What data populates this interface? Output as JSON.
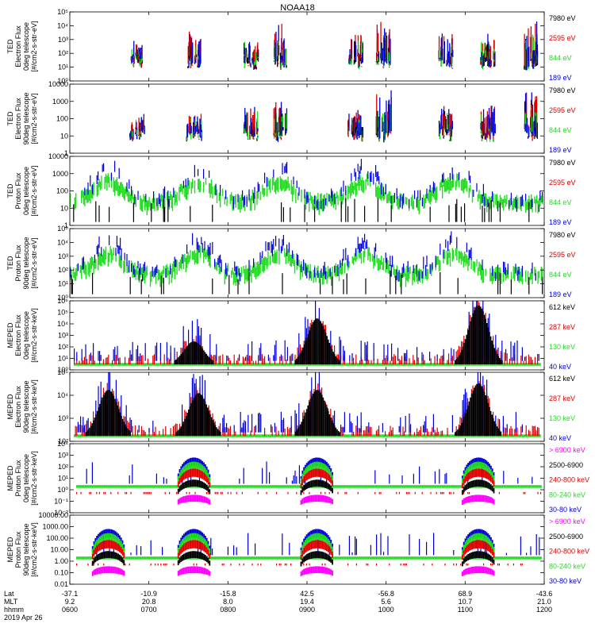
{
  "title": "NOAA18",
  "colors": {
    "black": "#000000",
    "red": "#e00000",
    "green": "#22dd22",
    "blue": "#0000dd",
    "magenta": "#ff00ff"
  },
  "chart_data": [
    {
      "type": "scatter",
      "panel": 1,
      "ylabel": [
        "TED",
        "Electron Flux",
        "0deg telescope",
        "[#/cm2-s-str-eV]"
      ],
      "scale": "log",
      "yticks": [
        "10⁰",
        "10¹",
        "10²",
        "10³",
        "10⁴",
        "10⁵"
      ],
      "ylim": [
        1,
        100000
      ],
      "legend": [
        {
          "text": "7980 eV",
          "color": "black"
        },
        {
          "text": "2595 eV",
          "color": "red"
        },
        {
          "text": "844 eV",
          "color": "green"
        },
        {
          "text": "189 eV",
          "color": "blue"
        }
      ],
      "events": [
        {
          "x": 0.14,
          "amp": 0.35
        },
        {
          "x": 0.26,
          "amp": 0.55
        },
        {
          "x": 0.38,
          "amp": 0.45
        },
        {
          "x": 0.44,
          "amp": 0.7
        },
        {
          "x": 0.6,
          "amp": 0.55
        },
        {
          "x": 0.66,
          "amp": 0.9
        },
        {
          "x": 0.79,
          "amp": 0.6
        },
        {
          "x": 0.88,
          "amp": 0.6
        },
        {
          "x": 0.97,
          "amp": 0.95
        }
      ]
    },
    {
      "type": "scatter",
      "panel": 2,
      "ylabel": [
        "TED",
        "Electron Flux",
        "90deg telescope",
        "[#/cm2-s-str-eV]"
      ],
      "scale": "linear-decades",
      "yticks": [
        "1",
        "10",
        "100",
        "1000",
        "10000"
      ],
      "ylim": [
        1,
        10000
      ],
      "legend": [
        {
          "text": "7980 eV",
          "color": "black"
        },
        {
          "text": "2595 eV",
          "color": "red"
        },
        {
          "text": "844 eV",
          "color": "green"
        },
        {
          "text": "189 eV",
          "color": "blue"
        }
      ],
      "events": [
        {
          "x": 0.14,
          "amp": 0.4
        },
        {
          "x": 0.26,
          "amp": 0.5
        },
        {
          "x": 0.38,
          "amp": 0.55
        },
        {
          "x": 0.44,
          "amp": 0.7
        },
        {
          "x": 0.6,
          "amp": 0.5
        },
        {
          "x": 0.66,
          "amp": 0.9
        },
        {
          "x": 0.79,
          "amp": 0.5
        },
        {
          "x": 0.88,
          "amp": 0.6
        },
        {
          "x": 0.97,
          "amp": 0.9
        }
      ]
    },
    {
      "type": "scatter",
      "panel": 3,
      "ylabel": [
        "TED",
        "Proton Flux",
        "0deg telescope",
        "[#/cm2-s-str-eV]"
      ],
      "scale": "linear-decades",
      "yticks": [
        "1",
        "10",
        "100",
        "1000",
        "10000"
      ],
      "ylim": [
        1,
        10000
      ],
      "legend": [
        {
          "text": "7980 eV",
          "color": "black"
        },
        {
          "text": "2595 eV",
          "color": "red"
        },
        {
          "text": "844 eV",
          "color": "green"
        },
        {
          "text": "189 eV",
          "color": "blue"
        }
      ],
      "humps": [
        0.08,
        0.27,
        0.44,
        0.62,
        0.81
      ]
    },
    {
      "type": "scatter",
      "panel": 4,
      "ylabel": [
        "TED",
        "Proton Flux",
        "90deg telescope",
        "[#/cm2-s-str-eV]"
      ],
      "scale": "log",
      "yticks": [
        "10⁰",
        "10¹",
        "10²",
        "10³",
        "10⁴",
        "10⁵"
      ],
      "ylim": [
        1,
        100000
      ],
      "legend": [
        {
          "text": "7980 eV",
          "color": "black"
        },
        {
          "text": "2595 eV",
          "color": "red"
        },
        {
          "text": "844 eV",
          "color": "green"
        },
        {
          "text": "189 eV",
          "color": "blue"
        }
      ],
      "humps": [
        0.08,
        0.27,
        0.44,
        0.62,
        0.81
      ]
    },
    {
      "type": "scatter",
      "panel": 5,
      "ylabel": [
        "MEPED",
        "Electron Flux",
        "0deg telescope",
        "[#/cm2-s-str-keV]"
      ],
      "scale": "log",
      "yticks": [
        "10⁰",
        "10¹",
        "10²",
        "10³",
        "10⁴",
        "10⁵",
        "10⁶"
      ],
      "ylim": [
        1,
        1000000
      ],
      "legend": [
        {
          "text": "612 keV",
          "color": "black"
        },
        {
          "text": "287 keV",
          "color": "red"
        },
        {
          "text": "130 keV",
          "color": "green"
        },
        {
          "text": "40 keV",
          "color": "blue"
        }
      ],
      "bursts": [
        {
          "x": 0.26,
          "peak": 0.35
        },
        {
          "x": 0.52,
          "peak": 0.7
        },
        {
          "x": 0.86,
          "peak": 0.9
        }
      ]
    },
    {
      "type": "scatter",
      "panel": 6,
      "ylabel": [
        "MEPED",
        "Electron Flux",
        "90deg telescope",
        "[#/cm2-s-str-keV]"
      ],
      "scale": "log",
      "yticks": [
        "10²",
        "10³",
        "10⁴",
        "10⁵"
      ],
      "ylim": [
        100,
        100000
      ],
      "legend": [
        {
          "text": "612 keV",
          "color": "black"
        },
        {
          "text": "287 keV",
          "color": "red"
        },
        {
          "text": "130 keV",
          "color": "green"
        },
        {
          "text": "40 keV",
          "color": "blue"
        }
      ],
      "bursts": [
        {
          "x": 0.08,
          "peak": 0.7
        },
        {
          "x": 0.27,
          "peak": 0.65
        },
        {
          "x": 0.52,
          "peak": 0.7
        },
        {
          "x": 0.86,
          "peak": 0.8
        }
      ]
    },
    {
      "type": "scatter",
      "panel": 7,
      "ylabel": [
        "MEPED",
        "Proton Flux",
        "0deg telescope",
        "[#/cm2-s-str-keV]"
      ],
      "scale": "log",
      "yticks": [
        "10⁻²",
        "10⁻¹",
        "10⁰",
        "10¹",
        "10²",
        "10³",
        "10⁴"
      ],
      "ylim": [
        0.01,
        10000
      ],
      "legend": [
        {
          "text": "> 6900 keV",
          "color": "magenta"
        },
        {
          "text": "2500-6900",
          "color": "black"
        },
        {
          "text": "240-800 keV",
          "color": "red"
        },
        {
          "text": "80-240 keV",
          "color": "green"
        },
        {
          "text": "30-80 keV",
          "color": "blue"
        }
      ],
      "arcs": [
        0.26,
        0.52,
        0.86
      ]
    },
    {
      "type": "scatter",
      "panel": 8,
      "ylabel": [
        "MEPED",
        "Proton Flux",
        "90deg telescope",
        "[#/cm2-s-str-keV]"
      ],
      "scale": "log",
      "yticks": [
        "0.01",
        "0.10",
        "1.00",
        "10.00",
        "100.00",
        "1000.00",
        "10000.00"
      ],
      "ylim": [
        0.01,
        10000
      ],
      "legend": [
        {
          "text": "> 6900 keV",
          "color": "magenta"
        },
        {
          "text": "2500-6900",
          "color": "black"
        },
        {
          "text": "240-800 keV",
          "color": "red"
        },
        {
          "text": "80-240 keV",
          "color": "green"
        },
        {
          "text": "30-80 keV",
          "color": "blue"
        }
      ],
      "arcs": [
        0.08,
        0.26,
        0.52,
        0.86
      ]
    }
  ],
  "xaxis": {
    "row_labels": [
      "Lat",
      "MLT",
      "hhmm"
    ],
    "ticks": [
      {
        "lat": "-37.1",
        "mlt": "9.2",
        "hhmm": "0600"
      },
      {
        "lat": "-10.9",
        "mlt": "20.8",
        "hhmm": "0700"
      },
      {
        "lat": "-15.8",
        "mlt": "8.0",
        "hhmm": "0800"
      },
      {
        "lat": "42.5",
        "mlt": "19.4",
        "hhmm": "0900"
      },
      {
        "lat": "-56.8",
        "mlt": "5.6",
        "hhmm": "1000"
      },
      {
        "lat": "68.9",
        "mlt": "10.7",
        "hhmm": "1100"
      },
      {
        "lat": "-43.6",
        "mlt": "21.0",
        "hhmm": "1200"
      }
    ],
    "date": "2019 Apr 26"
  }
}
